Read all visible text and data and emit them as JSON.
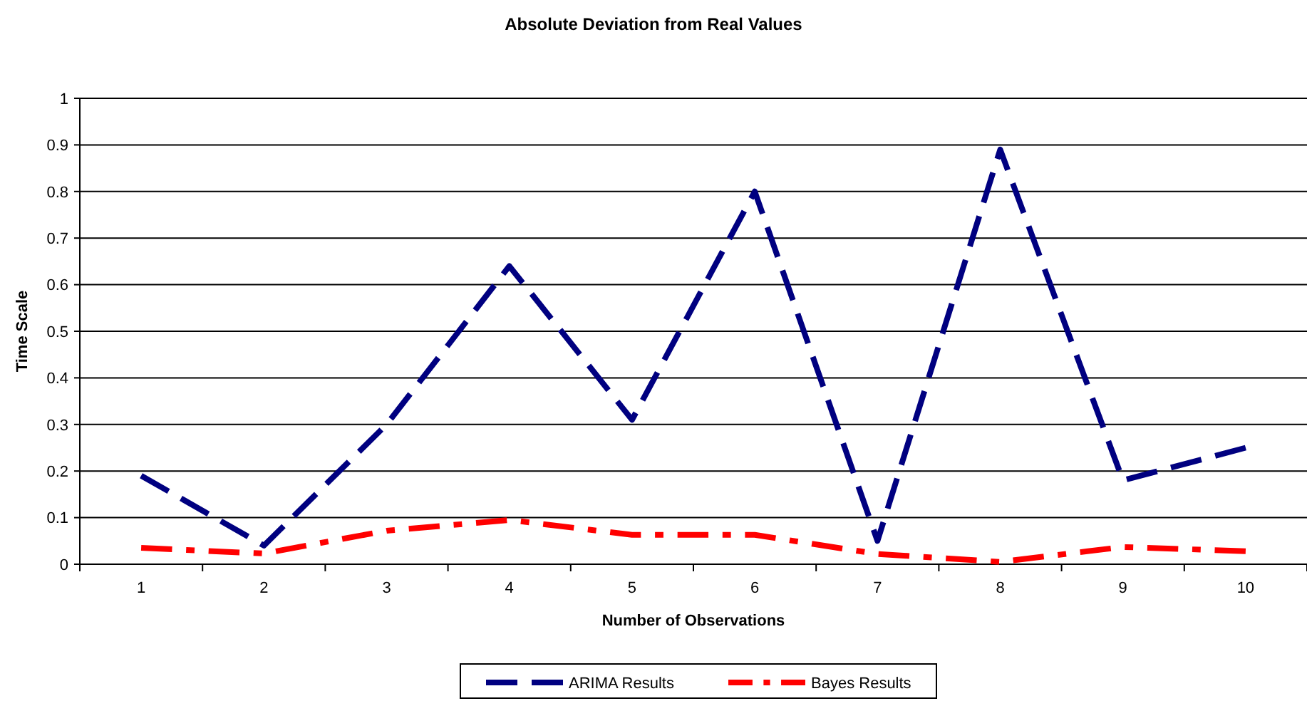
{
  "chart_data": {
    "type": "line",
    "title": "Absolute Deviation from Real Values",
    "xlabel": "Number of Observations",
    "ylabel": "Time Scale",
    "categories": [
      "1",
      "2",
      "3",
      "4",
      "5",
      "6",
      "7",
      "8",
      "9",
      "10"
    ],
    "series": [
      {
        "name": "ARIMA Results",
        "color": "#000080",
        "line_style": "dashed",
        "values": [
          0.19,
          0.04,
          0.3,
          0.64,
          0.31,
          0.8,
          0.05,
          0.89,
          0.18,
          0.25
        ]
      },
      {
        "name": "Bayes Results",
        "color": "#ff0000",
        "line_style": "dashdot",
        "values": [
          0.035,
          0.023,
          0.072,
          0.095,
          0.063,
          0.063,
          0.022,
          0.005,
          0.037,
          0.028
        ]
      }
    ],
    "ylim": [
      0,
      1
    ],
    "yticks": [
      0,
      0.1,
      0.2,
      0.3,
      0.4,
      0.5,
      0.6,
      0.7,
      0.8,
      0.9,
      1
    ],
    "grid": "y",
    "legend": "bottom",
    "marker": "none"
  }
}
